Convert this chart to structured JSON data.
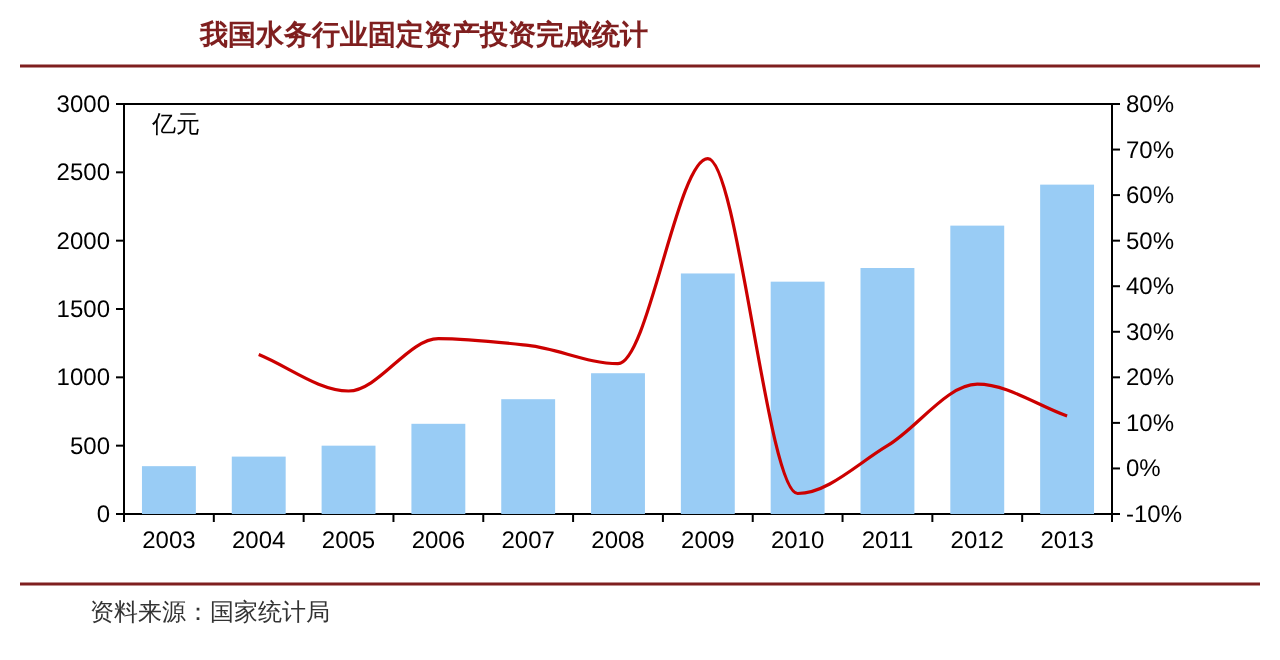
{
  "chart_data": {
    "type": "bar",
    "title": "我国水务行业固定资产投资完成统计",
    "ylabel": "亿元",
    "annotations": [
      "资料来源：国家统计局"
    ],
    "categories": [
      "2003",
      "2004",
      "2005",
      "2006",
      "2007",
      "2008",
      "2009",
      "2010",
      "2011",
      "2012",
      "2013"
    ],
    "series": [
      {
        "color": "#99ccf5",
        "values": [
          350,
          420,
          500,
          660,
          840,
          1030,
          1760,
          1700,
          1800,
          2110,
          2410
        ]
      },
      {
        "type": "line",
        "axis": "y2",
        "color": "#cc0000",
        "values": [
          null,
          25,
          17,
          28.5,
          27,
          23,
          68,
          -5.5,
          5,
          18.5,
          11.5
        ]
      }
    ],
    "ylim": [
      0,
      3000
    ],
    "yticks": [
      0,
      500,
      1000,
      1500,
      2000,
      2500,
      3000
    ],
    "y2lim": [
      -10,
      80
    ],
    "y2ticks": [
      {
        "value": -10,
        "label": "-10%"
      },
      {
        "value": 0,
        "label": "0%"
      },
      {
        "value": 10,
        "label": "10%"
      },
      {
        "value": 20,
        "label": "20%"
      },
      {
        "value": 30,
        "label": "30%"
      },
      {
        "value": 40,
        "label": "40%"
      },
      {
        "value": 50,
        "label": "50%"
      },
      {
        "value": 60,
        "label": "60%"
      },
      {
        "value": 70,
        "label": "70%"
      },
      {
        "value": 80,
        "label": "80%"
      }
    ]
  }
}
